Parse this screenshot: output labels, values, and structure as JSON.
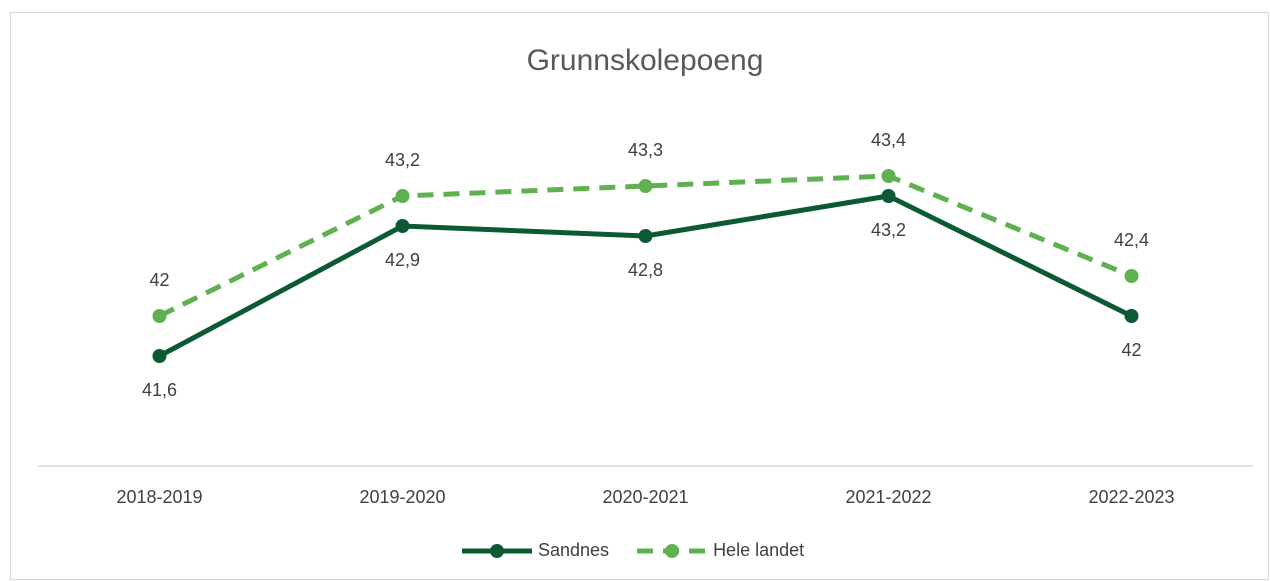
{
  "chart_data": {
    "type": "line",
    "title": "Grunnskolepoeng",
    "categories": [
      "2018-2019",
      "2019-2020",
      "2020-2021",
      "2021-2022",
      "2022-2023"
    ],
    "series": [
      {
        "name": "Sandnes",
        "color": "#0b5a34",
        "dashed": false,
        "label_position": "below",
        "values": [
          41.6,
          42.9,
          42.8,
          43.2,
          42
        ],
        "value_labels": [
          "41,6",
          "42,9",
          "42,8",
          "43,2",
          "42"
        ]
      },
      {
        "name": "Hele landet",
        "color": "#5fb14f",
        "dashed": true,
        "label_position": "above",
        "values": [
          42,
          43.2,
          43.3,
          43.4,
          42.4
        ],
        "value_labels": [
          "42",
          "43,2",
          "43,3",
          "43,4",
          "42,4"
        ]
      }
    ],
    "ylim": [
      40.5,
      44.5
    ],
    "legend": "bottom"
  }
}
